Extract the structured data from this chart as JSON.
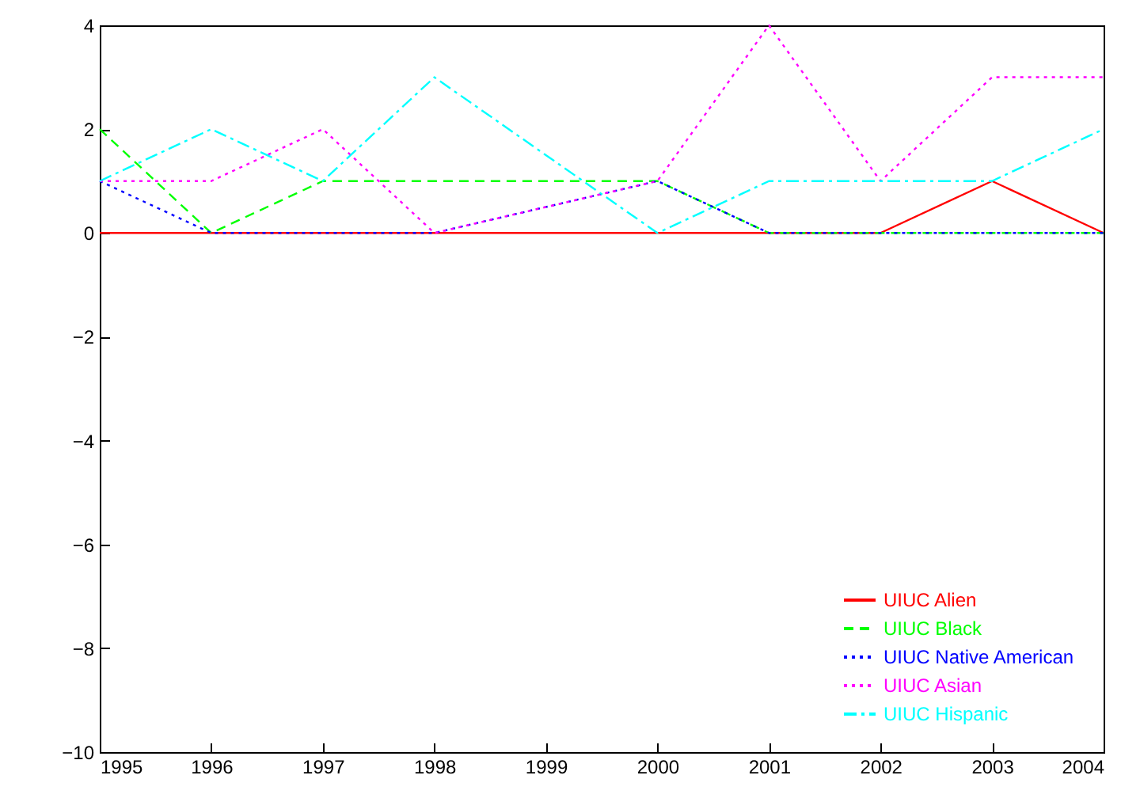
{
  "chart_data": {
    "type": "line",
    "x": [
      1995,
      1996,
      1997,
      1998,
      2000,
      2001,
      2002,
      2003,
      2004
    ],
    "series": [
      {
        "name": "UIUC Alien",
        "color": "#ff0000",
        "line_style": "solid",
        "values": [
          0,
          0,
          0,
          0,
          0,
          0,
          0,
          1,
          0
        ]
      },
      {
        "name": "UIUC Black",
        "color": "#00ff00",
        "line_style": "dashed",
        "values": [
          2,
          0,
          1,
          1,
          1,
          0,
          0,
          0,
          0
        ]
      },
      {
        "name": "UIUC Native American",
        "color": "#0000ff",
        "line_style": "dotted",
        "values": [
          1,
          0,
          0,
          0,
          1,
          0,
          0,
          0,
          0
        ]
      },
      {
        "name": "UIUC Asian",
        "color": "#ff00ff",
        "line_style": "dotted",
        "values": [
          1,
          1,
          2,
          0,
          1,
          4,
          1,
          3,
          3
        ]
      },
      {
        "name": "UIUC Hispanic",
        "color": "#00ffff",
        "line_style": "dashdot",
        "values": [
          1,
          2,
          1,
          3,
          0,
          1,
          1,
          1,
          2
        ]
      }
    ],
    "xlim": [
      1995,
      2004
    ],
    "xticks": [
      1995,
      1996,
      1997,
      1998,
      1999,
      2000,
      2001,
      2002,
      2003,
      2004
    ],
    "ylim": [
      -10,
      4
    ],
    "yticks": [
      -10,
      -8,
      -6,
      -4,
      -2,
      0,
      2,
      4
    ],
    "grid": false,
    "legend": "bottom right",
    "marker": "none"
  }
}
